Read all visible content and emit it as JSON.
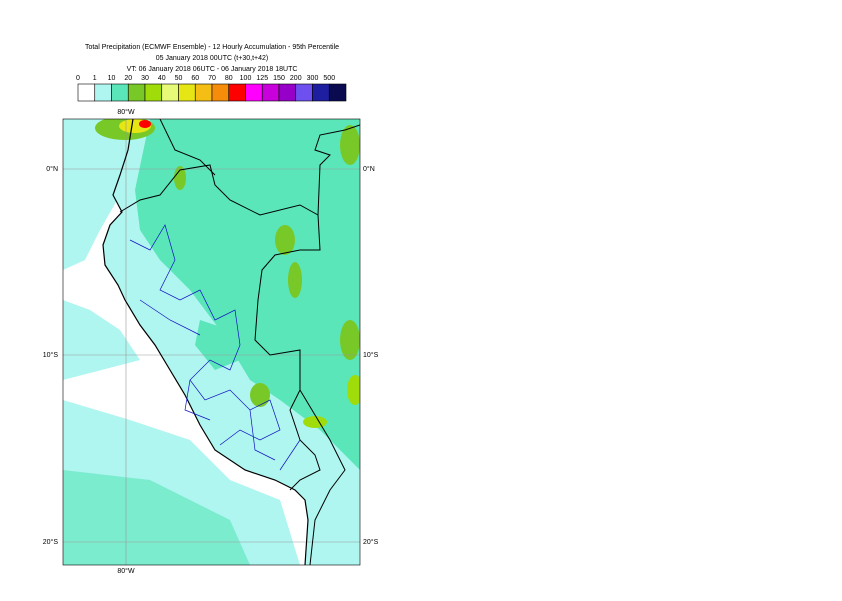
{
  "header": {
    "lines": [
      "Total Precipitation (ECMWF Ensemble) - 12 Hourly Accumulation - 95th Percentile",
      "05 January 2018 00UTC (t+30,t+42)",
      "VT: 06 January 2018 06UTC - 06 January 2018 18UTC"
    ]
  },
  "legend": {
    "bounds": [
      0,
      1,
      10,
      20,
      30,
      40,
      50,
      60,
      70,
      80,
      100,
      125,
      150,
      200,
      300,
      500
    ],
    "colors": [
      "#ffffff",
      "#aff5f0",
      "#5ae6b9",
      "#78c828",
      "#a0dc0a",
      "#e6fa78",
      "#e6e614",
      "#f5be14",
      "#f58c0a",
      "#ff0000",
      "#ff00ff",
      "#c800dc",
      "#9600c8",
      "#6e50f0",
      "#1e1ea0",
      "#0a0a50"
    ]
  },
  "grid_labels": {
    "top": "80°W",
    "bottom": "80°W",
    "left": [
      "0°N",
      "10°S",
      "20°S"
    ],
    "right": [
      "0°N",
      "10°S",
      "20°S"
    ]
  }
}
